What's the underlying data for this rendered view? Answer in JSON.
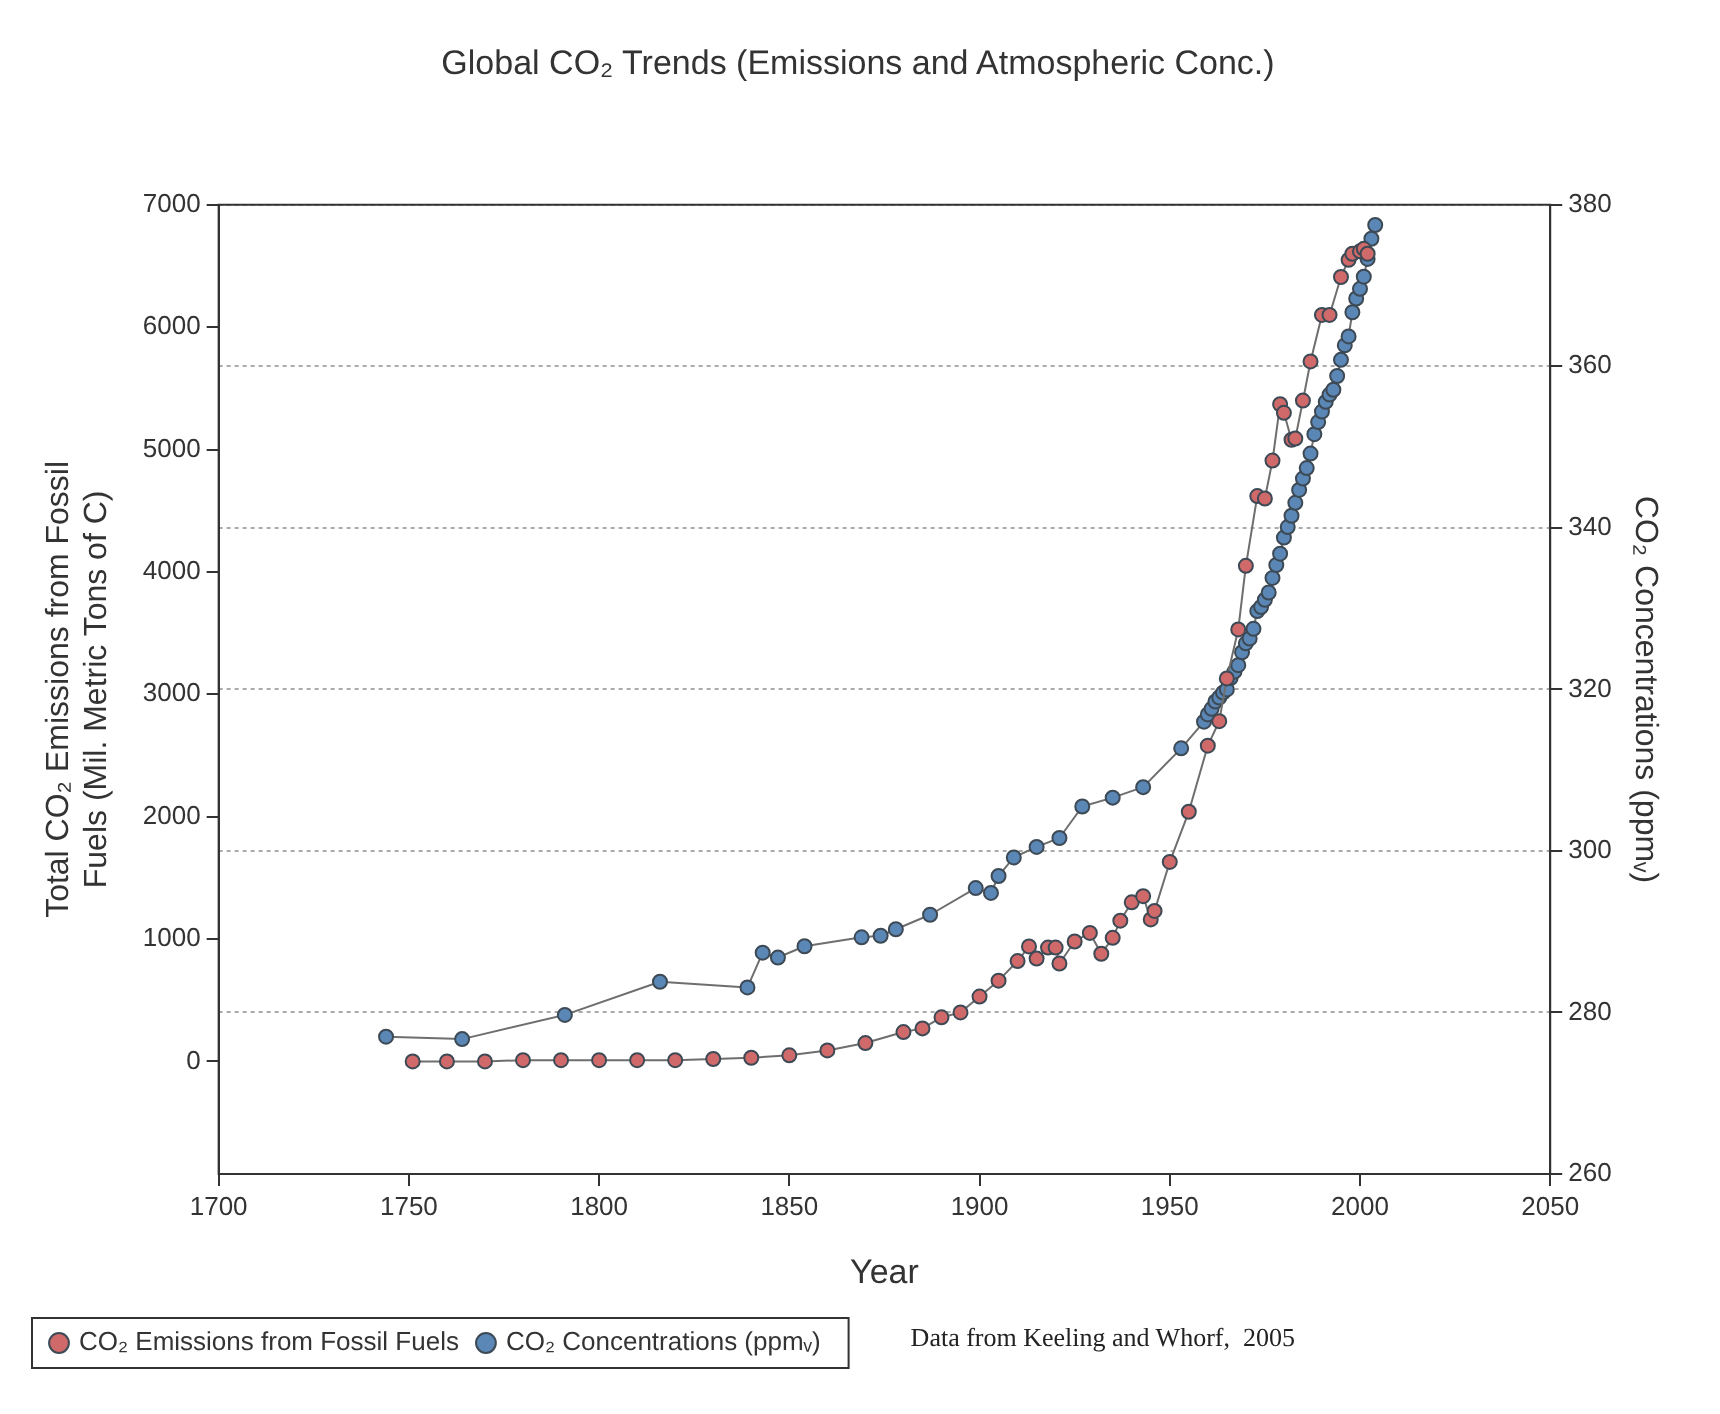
{
  "chart_data": {
    "type": "line",
    "title": "Global CO₂ Trends (Emissions and Atmospheric Conc.)",
    "xlabel": "Year",
    "ylabel": "Total CO₂ Emissions from Fossil Fuels (Mil. Metric Tons of C)",
    "y2label": "CO₂ Concentrations (ppmᵥ)",
    "xlim": [
      1700,
      2050
    ],
    "xticks": [
      1700,
      1750,
      1800,
      1850,
      1900,
      1950,
      2000,
      2050
    ],
    "ylim": [
      -920,
      7000
    ],
    "yticks": [
      0,
      1000,
      2000,
      3000,
      4000,
      5000,
      6000,
      7000
    ],
    "y2lim": [
      260,
      380
    ],
    "y2ticks": [
      260,
      280,
      300,
      320,
      340,
      360,
      380
    ],
    "grid": "y",
    "legend": "bottom left",
    "marker": "circle",
    "line_style": "solid",
    "annotations": [
      "Data from Keeling and Whorf,  2005"
    ],
    "series": [
      {
        "name": "CO₂ Emissions from Fossil Fuels",
        "color": "#d06a6a",
        "x": [
          1751,
          1760,
          1770,
          1780,
          1790,
          1800,
          1810,
          1820,
          1830,
          1840,
          1850,
          1860,
          1870,
          1880,
          1885,
          1890,
          1895,
          1900,
          1905,
          1910,
          1913,
          1915,
          1918,
          1920,
          1921,
          1925,
          1929,
          1932,
          1935,
          1937,
          1940,
          1943,
          1945,
          1946,
          1950,
          1955,
          1960,
          1963,
          1965,
          1968,
          1970,
          1973,
          1975,
          1977,
          1979,
          1980,
          1982,
          1983,
          1985,
          1987,
          1990,
          1992,
          1995,
          1997,
          1998,
          2000,
          2001,
          2002
        ],
        "values": [
          0,
          0,
          0,
          10,
          10,
          10,
          10,
          10,
          20,
          30,
          50,
          90,
          150,
          240,
          270,
          360,
          400,
          530,
          660,
          820,
          940,
          840,
          930,
          930,
          800,
          980,
          1050,
          880,
          1010,
          1150,
          1300,
          1350,
          1160,
          1230,
          1630,
          2040,
          2580,
          2780,
          3130,
          3530,
          4050,
          4620,
          4600,
          4910,
          5370,
          5300,
          5080,
          5090,
          5400,
          5720,
          6100,
          6100,
          6410,
          6550,
          6600,
          6620,
          6640,
          6600
        ]
      },
      {
        "name": "CO₂ Concentrations (ppmᵥ)",
        "color": "#5a87b5",
        "axis": "y2",
        "x": [
          1744,
          1764,
          1791,
          1816,
          1839,
          1843,
          1847,
          1854,
          1869,
          1874,
          1878,
          1887,
          1899,
          1903,
          1905,
          1909,
          1915,
          1921,
          1927,
          1935,
          1943,
          1953,
          1959,
          1960,
          1961,
          1962,
          1963,
          1964,
          1965,
          1966,
          1967,
          1968,
          1969,
          1970,
          1971,
          1972,
          1973,
          1974,
          1975,
          1976,
          1977,
          1978,
          1979,
          1980,
          1981,
          1982,
          1983,
          1984,
          1985,
          1986,
          1987,
          1988,
          1989,
          1990,
          1991,
          1992,
          1993,
          1994,
          1995,
          1996,
          1997,
          1998,
          1999,
          2000,
          2001,
          2002,
          2003,
          2004
        ],
        "values": [
          277.0,
          276.7,
          279.7,
          283.8,
          283.1,
          287.4,
          286.8,
          288.2,
          289.3,
          289.5,
          290.3,
          292.1,
          295.4,
          294.8,
          296.9,
          299.2,
          300.5,
          301.6,
          305.5,
          306.6,
          307.9,
          312.7,
          316.0,
          316.9,
          317.6,
          318.5,
          319.0,
          319.6,
          320.0,
          321.4,
          322.2,
          323.0,
          324.6,
          325.7,
          326.3,
          327.5,
          329.7,
          330.2,
          331.1,
          332.0,
          333.8,
          335.4,
          336.8,
          338.8,
          340.1,
          341.5,
          343.1,
          344.7,
          346.1,
          347.4,
          349.2,
          351.6,
          353.1,
          354.4,
          355.6,
          356.5,
          357.1,
          358.8,
          360.8,
          362.6,
          363.7,
          366.7,
          368.4,
          369.6,
          371.1,
          373.3,
          375.8,
          377.5
        ]
      }
    ]
  }
}
